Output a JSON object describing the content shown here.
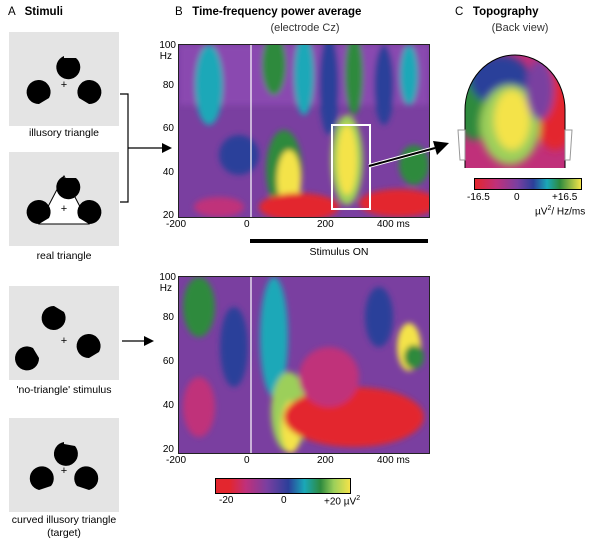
{
  "panel_a": {
    "letter": "A",
    "title": "Stimuli",
    "stimuli": [
      {
        "caption": "illusory triangle"
      },
      {
        "caption": "real triangle"
      },
      {
        "caption": "'no-triangle' stimulus"
      },
      {
        "caption": "curved illusory triangle",
        "caption2": "(target)"
      }
    ]
  },
  "panel_b": {
    "letter": "B",
    "title": "Time-frequency power average",
    "subtitle": "(electrode Cz)",
    "y_ticks": [
      "100",
      "80",
      "60",
      "40",
      "20"
    ],
    "y_unit": "Hz",
    "x_ticks": [
      "-200",
      "0",
      "200",
      "400 ms"
    ],
    "stimulus_label": "Stimulus ON",
    "colorbar": {
      "labels": [
        "-20",
        "0",
        "+20 µV"
      ],
      "sup": "2"
    }
  },
  "panel_c": {
    "letter": "C",
    "title": "Topography",
    "subtitle": "(Back view)",
    "colorbar": {
      "labels": [
        "-16.5",
        "0",
        "+16.5"
      ],
      "unit": "µV",
      "sup": "2",
      "unit_tail": "/ Hz/ms"
    }
  },
  "colors": {
    "red": "#e3262e",
    "magenta": "#c0307a",
    "purple": "#7a3fa0",
    "blue": "#2c3f9a",
    "cyan": "#1aa8b8",
    "green": "#2e8a3e",
    "yellow": "#f4e34a",
    "lightgreen": "#9ccf5a"
  }
}
